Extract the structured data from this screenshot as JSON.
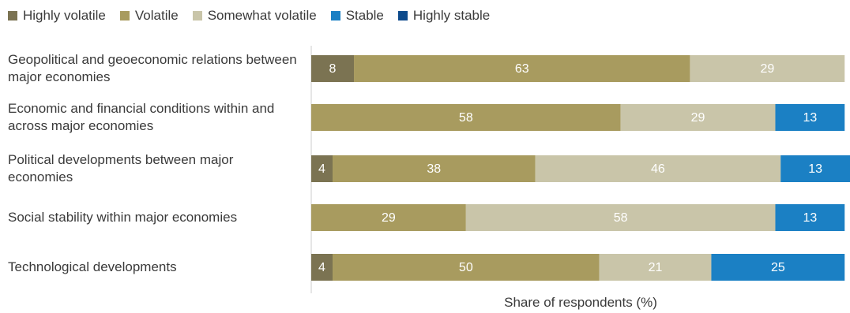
{
  "chart_data": {
    "type": "stacked-bar-horizontal",
    "categories": [
      "Geopolitical and geoeconomic relations between major economies",
      "Economic and financial conditions within and across major economies",
      "Political developments between major economies",
      "Social stability within major economies",
      "Technological developments"
    ],
    "series": [
      {
        "name": "Highly volatile",
        "color": "#7b7352",
        "values": [
          8,
          null,
          4,
          null,
          4
        ]
      },
      {
        "name": "Volatile",
        "color": "#a89b5f",
        "values": [
          63,
          58,
          38,
          29,
          50
        ]
      },
      {
        "name": "Somewhat volatile",
        "color": "#c9c5a9",
        "values": [
          29,
          29,
          46,
          58,
          21
        ]
      },
      {
        "name": "Stable",
        "color": "#1b80c4",
        "values": [
          null,
          13,
          13,
          13,
          25
        ]
      },
      {
        "name": "Highly stable",
        "color": "#0e4b8c",
        "values": [
          null,
          null,
          null,
          null,
          null
        ]
      }
    ],
    "x_label": "Share of respondents (%)"
  }
}
